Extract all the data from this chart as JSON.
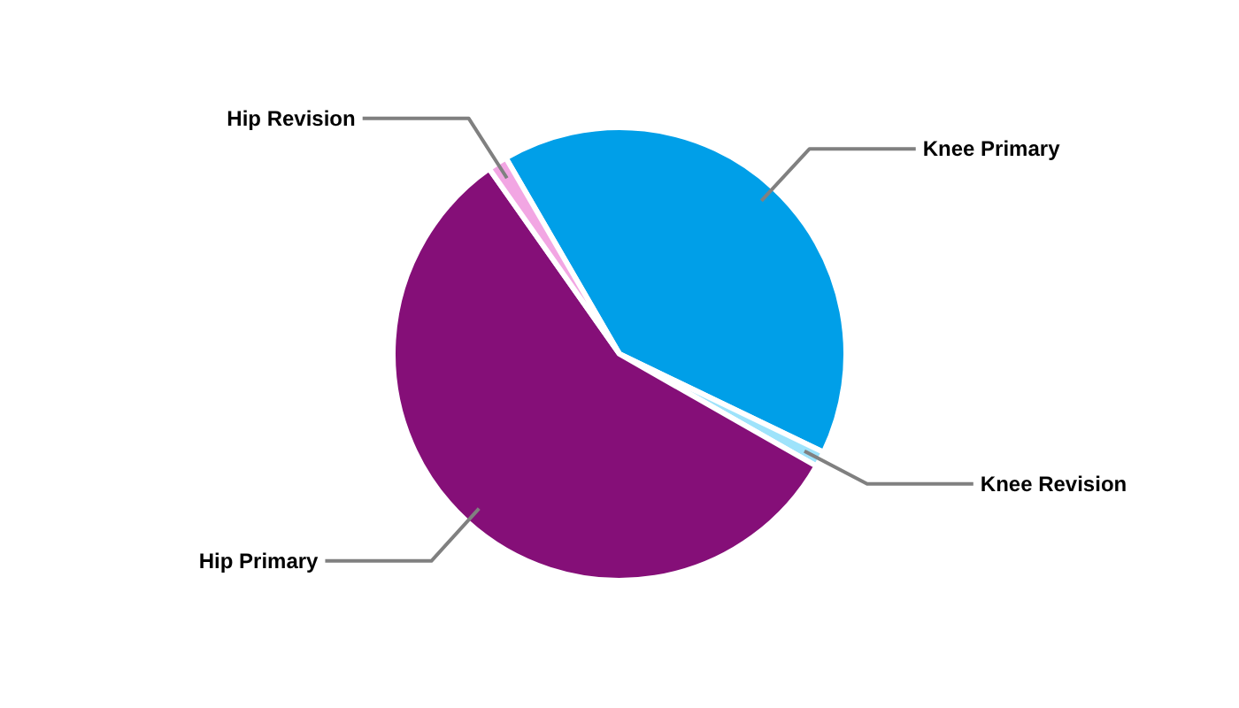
{
  "chart_data": {
    "type": "pie",
    "categories": [
      "Knee Primary",
      "Knee Revision",
      "Hip Primary",
      "Hip Revision"
    ],
    "values": [
      40.5,
      1.1,
      57,
      1.4
    ],
    "colors": [
      "#009fe8",
      "#9ee3fb",
      "#850f78",
      "#f2a6e3"
    ]
  }
}
